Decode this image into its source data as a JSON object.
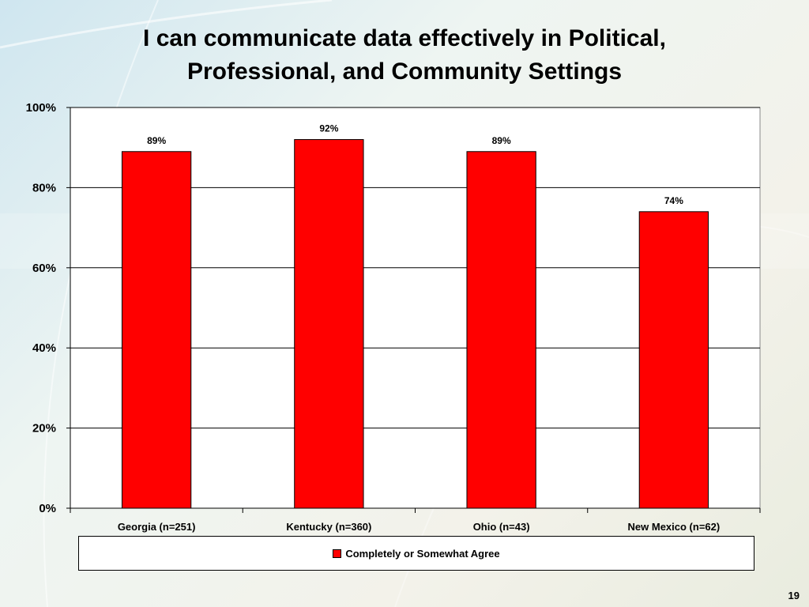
{
  "slide": {
    "page_number": "19"
  },
  "chart_data": {
    "type": "bar",
    "title": [
      "I can communicate data effectively in Political,",
      "Professional, and Community Settings"
    ],
    "categories": [
      "Georgia (n=251)",
      "Kentucky (n=360)",
      "Ohio (n=43)",
      "New Mexico (n=62)"
    ],
    "series": [
      {
        "name": "Completely or Somewhat Agree",
        "values": [
          89,
          92,
          89,
          74
        ],
        "color": "#ff0000"
      }
    ],
    "data_labels": [
      "89%",
      "92%",
      "89%",
      "74%"
    ],
    "ylim": [
      0,
      100
    ],
    "yticks": [
      0,
      20,
      40,
      60,
      80,
      100
    ],
    "ytick_labels": [
      "0%",
      "20%",
      "40%",
      "60%",
      "80%",
      "100%"
    ],
    "grid": true,
    "legend_position": "bottom",
    "plot_background": "#ffffff"
  }
}
